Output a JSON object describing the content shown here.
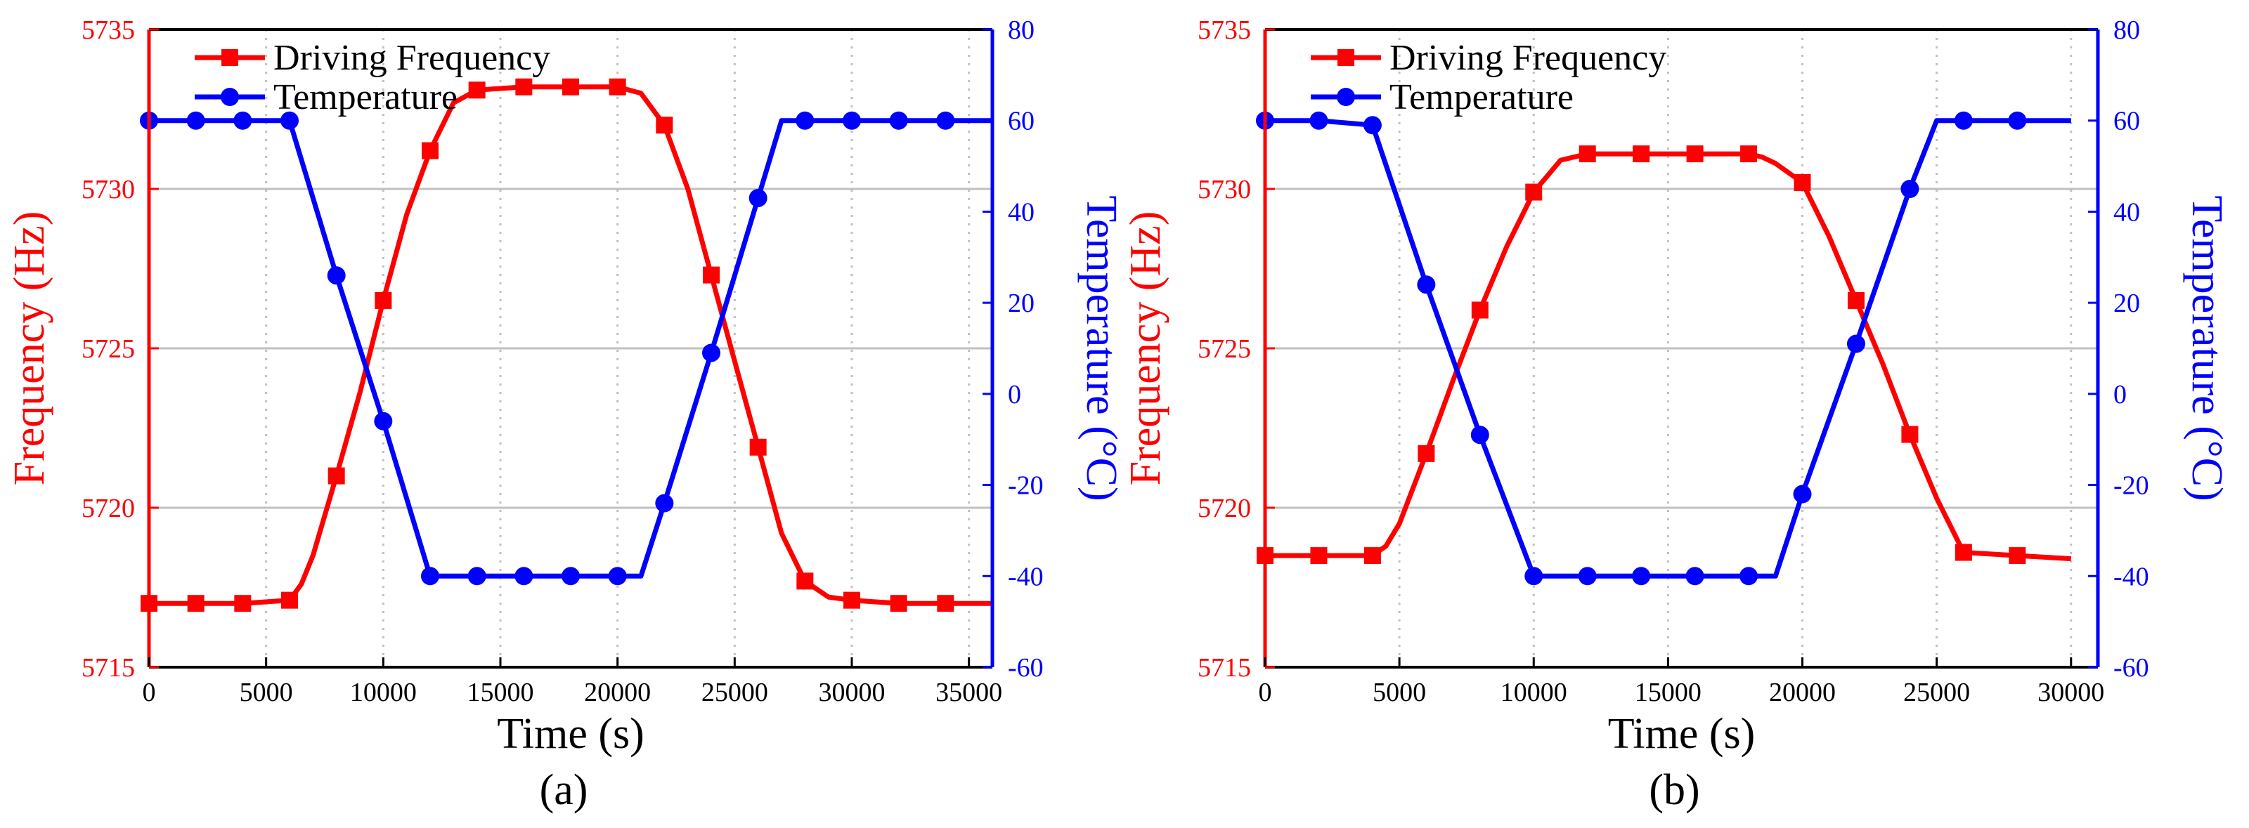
{
  "colors": {
    "frequency": "#ff0000",
    "temperature": "#0000ff",
    "grid": "#c0c0c0",
    "axis": "#000000"
  },
  "chart_data": [
    {
      "type": "line",
      "panel_label": "(a)",
      "xlabel": "Time (s)",
      "ylabel_left": "Frequency (Hz)",
      "ylabel_right": "Temperature (°C)",
      "xlim": [
        0,
        36000
      ],
      "ylim_left": [
        5715,
        5735
      ],
      "ylim_right": [
        -60,
        80
      ],
      "x_ticks": [
        0,
        5000,
        10000,
        15000,
        20000,
        25000,
        30000,
        35000
      ],
      "y_ticks_left": [
        5715,
        5720,
        5725,
        5730,
        5735
      ],
      "y_ticks_right": [
        -60,
        -40,
        -20,
        0,
        20,
        40,
        60,
        80
      ],
      "grid": {
        "vertical": "dotted",
        "horizontal": "solid"
      },
      "legend_position": "top-left",
      "series": [
        {
          "name": "Driving Frequency",
          "axis": "left",
          "color_key": "frequency",
          "marker": "square",
          "line_x": [
            0,
            2000,
            4000,
            6000,
            6500,
            7000,
            8000,
            9000,
            10000,
            11000,
            12000,
            13000,
            14000,
            16000,
            18000,
            20000,
            20500,
            21000,
            22000,
            23000,
            24000,
            25000,
            26000,
            27000,
            28000,
            29000,
            30000,
            32000,
            34000,
            36000
          ],
          "line_y": [
            5717,
            5717,
            5717,
            5717.1,
            5717.6,
            5718.5,
            5721,
            5723.6,
            5726.5,
            5729.2,
            5731.2,
            5732.7,
            5733.1,
            5733.2,
            5733.2,
            5733.2,
            5733.1,
            5733,
            5732,
            5730,
            5727.3,
            5724.6,
            5721.9,
            5719.2,
            5717.7,
            5717.2,
            5717.1,
            5717,
            5717,
            5717
          ],
          "marker_x": [
            0,
            2000,
            4000,
            6000,
            8000,
            10000,
            12000,
            14000,
            16000,
            18000,
            20000,
            22000,
            24000,
            26000,
            28000,
            30000,
            32000,
            34000
          ],
          "marker_y": [
            5717,
            5717,
            5717,
            5717.1,
            5721,
            5726.5,
            5731.2,
            5733.1,
            5733.2,
            5733.2,
            5733.2,
            5732,
            5727.3,
            5721.9,
            5717.7,
            5717.1,
            5717,
            5717
          ]
        },
        {
          "name": "Temperature",
          "axis": "right",
          "color_key": "temperature",
          "marker": "circle",
          "line_x": [
            0,
            2000,
            4000,
            6000,
            8000,
            10000,
            12000,
            14000,
            16000,
            18000,
            20000,
            21000,
            22000,
            24000,
            26000,
            27000,
            28000,
            30000,
            32000,
            34000,
            36000
          ],
          "line_y": [
            60,
            60,
            60,
            60,
            26,
            -6,
            -40,
            -40,
            -40,
            -40,
            -40,
            -40,
            -24,
            9,
            43,
            60,
            60,
            60,
            60,
            60,
            60
          ],
          "marker_x": [
            0,
            2000,
            4000,
            6000,
            8000,
            10000,
            12000,
            14000,
            16000,
            18000,
            20000,
            22000,
            24000,
            26000,
            28000,
            30000,
            32000,
            34000
          ],
          "marker_y": [
            60,
            60,
            60,
            60,
            26,
            -6,
            -40,
            -40,
            -40,
            -40,
            -40,
            -24,
            9,
            43,
            60,
            60,
            60,
            60
          ]
        }
      ]
    },
    {
      "type": "line",
      "panel_label": "(b)",
      "xlabel": "Time (s)",
      "ylabel_left": "Frequency (Hz)",
      "ylabel_right": "Temperature (°C)",
      "xlim": [
        0,
        31000
      ],
      "ylim_left": [
        5715,
        5735
      ],
      "ylim_right": [
        -60,
        80
      ],
      "x_ticks": [
        0,
        5000,
        10000,
        15000,
        20000,
        25000,
        30000
      ],
      "y_ticks_left": [
        5715,
        5720,
        5725,
        5730,
        5735
      ],
      "y_ticks_right": [
        -60,
        -40,
        -20,
        0,
        20,
        40,
        60,
        80
      ],
      "grid": {
        "vertical": "dotted",
        "horizontal": "solid"
      },
      "legend_position": "top-left",
      "series": [
        {
          "name": "Driving Frequency",
          "axis": "left",
          "color_key": "frequency",
          "marker": "square",
          "line_x": [
            0,
            2000,
            4000,
            4500,
            5000,
            6000,
            7000,
            8000,
            9000,
            10000,
            11000,
            12000,
            14000,
            16000,
            18000,
            18500,
            19000,
            20000,
            21000,
            22000,
            23000,
            24000,
            25000,
            26000,
            28000,
            30000
          ],
          "line_y": [
            5718.5,
            5718.5,
            5718.5,
            5718.8,
            5719.5,
            5721.7,
            5724,
            5726.2,
            5728.2,
            5729.9,
            5730.9,
            5731.1,
            5731.1,
            5731.1,
            5731.1,
            5731,
            5730.8,
            5730.2,
            5728.5,
            5726.5,
            5724.5,
            5722.3,
            5720.3,
            5718.6,
            5718.5,
            5718.4
          ],
          "marker_x": [
            0,
            2000,
            4000,
            6000,
            8000,
            10000,
            12000,
            14000,
            16000,
            18000,
            20000,
            22000,
            24000,
            26000,
            28000
          ],
          "marker_y": [
            5718.5,
            5718.5,
            5718.5,
            5721.7,
            5726.2,
            5729.9,
            5731.1,
            5731.1,
            5731.1,
            5731.1,
            5730.2,
            5726.5,
            5722.3,
            5718.6,
            5718.5
          ]
        },
        {
          "name": "Temperature",
          "axis": "right",
          "color_key": "temperature",
          "marker": "circle",
          "line_x": [
            0,
            2000,
            4000,
            6000,
            8000,
            10000,
            12000,
            14000,
            16000,
            18000,
            19000,
            20000,
            22000,
            24000,
            25000,
            26000,
            28000,
            30000
          ],
          "line_y": [
            60,
            60,
            59,
            24,
            -9,
            -40,
            -40,
            -40,
            -40,
            -40,
            -40,
            -22,
            11,
            45,
            60,
            60,
            60,
            60
          ],
          "marker_x": [
            0,
            2000,
            4000,
            6000,
            8000,
            10000,
            12000,
            14000,
            16000,
            18000,
            20000,
            22000,
            24000,
            26000,
            28000
          ],
          "marker_y": [
            60,
            60,
            59,
            24,
            -9,
            -40,
            -40,
            -40,
            -40,
            -40,
            -22,
            11,
            45,
            60,
            60
          ]
        }
      ]
    }
  ]
}
